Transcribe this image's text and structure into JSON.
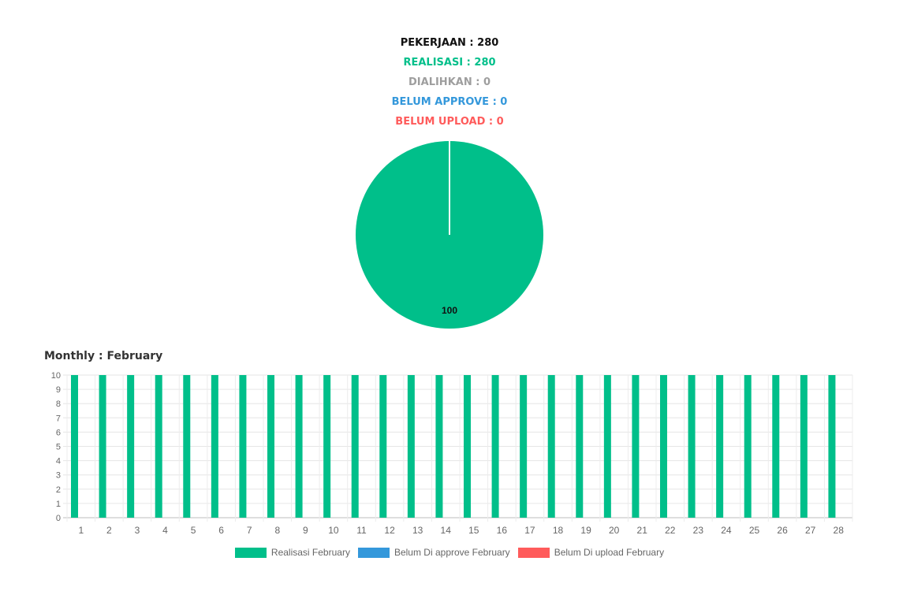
{
  "summary": {
    "pekerjaan": "PEKERJAAN : 280",
    "realisasi": "REALISASI : 280",
    "dialihkan": "DIALIHKAN : 0",
    "belum_approve": "BELUM APPROVE : 0",
    "belum_upload": "BELUM UPLOAD : 0"
  },
  "colors": {
    "black": "#111111",
    "green": "#00bf8a",
    "gray": "#9e9e9e",
    "blue": "#3498db",
    "red": "#ff5b5b"
  },
  "monthly": {
    "title": "Monthly : February"
  },
  "chart_data": [
    {
      "type": "pie",
      "labels": [
        "Realisasi",
        "Belum Di approve",
        "Belum Di upload"
      ],
      "values": [
        100,
        0,
        0
      ],
      "data_label": "100",
      "colors": [
        "#00bf8a",
        "#3498db",
        "#ff5b5b"
      ]
    },
    {
      "type": "bar",
      "title": "Monthly : February",
      "categories": [
        "1",
        "2",
        "3",
        "4",
        "5",
        "6",
        "7",
        "8",
        "9",
        "10",
        "11",
        "12",
        "13",
        "14",
        "15",
        "16",
        "17",
        "18",
        "19",
        "20",
        "21",
        "22",
        "23",
        "24",
        "25",
        "26",
        "27",
        "28"
      ],
      "series": [
        {
          "name": "Realisasi February",
          "color": "#00bf8a",
          "values": [
            10,
            10,
            10,
            10,
            10,
            10,
            10,
            10,
            10,
            10,
            10,
            10,
            10,
            10,
            10,
            10,
            10,
            10,
            10,
            10,
            10,
            10,
            10,
            10,
            10,
            10,
            10,
            10
          ]
        },
        {
          "name": "Belum Di approve February",
          "color": "#3498db",
          "values": [
            0,
            0,
            0,
            0,
            0,
            0,
            0,
            0,
            0,
            0,
            0,
            0,
            0,
            0,
            0,
            0,
            0,
            0,
            0,
            0,
            0,
            0,
            0,
            0,
            0,
            0,
            0,
            0
          ]
        },
        {
          "name": "Belum Di upload February",
          "color": "#ff5b5b",
          "values": [
            0,
            0,
            0,
            0,
            0,
            0,
            0,
            0,
            0,
            0,
            0,
            0,
            0,
            0,
            0,
            0,
            0,
            0,
            0,
            0,
            0,
            0,
            0,
            0,
            0,
            0,
            0,
            0
          ]
        }
      ],
      "ylim": [
        0,
        10
      ],
      "yticks": [
        0,
        1,
        2,
        3,
        4,
        5,
        6,
        7,
        8,
        9,
        10
      ],
      "grid": true,
      "legend_position": "bottom"
    }
  ]
}
